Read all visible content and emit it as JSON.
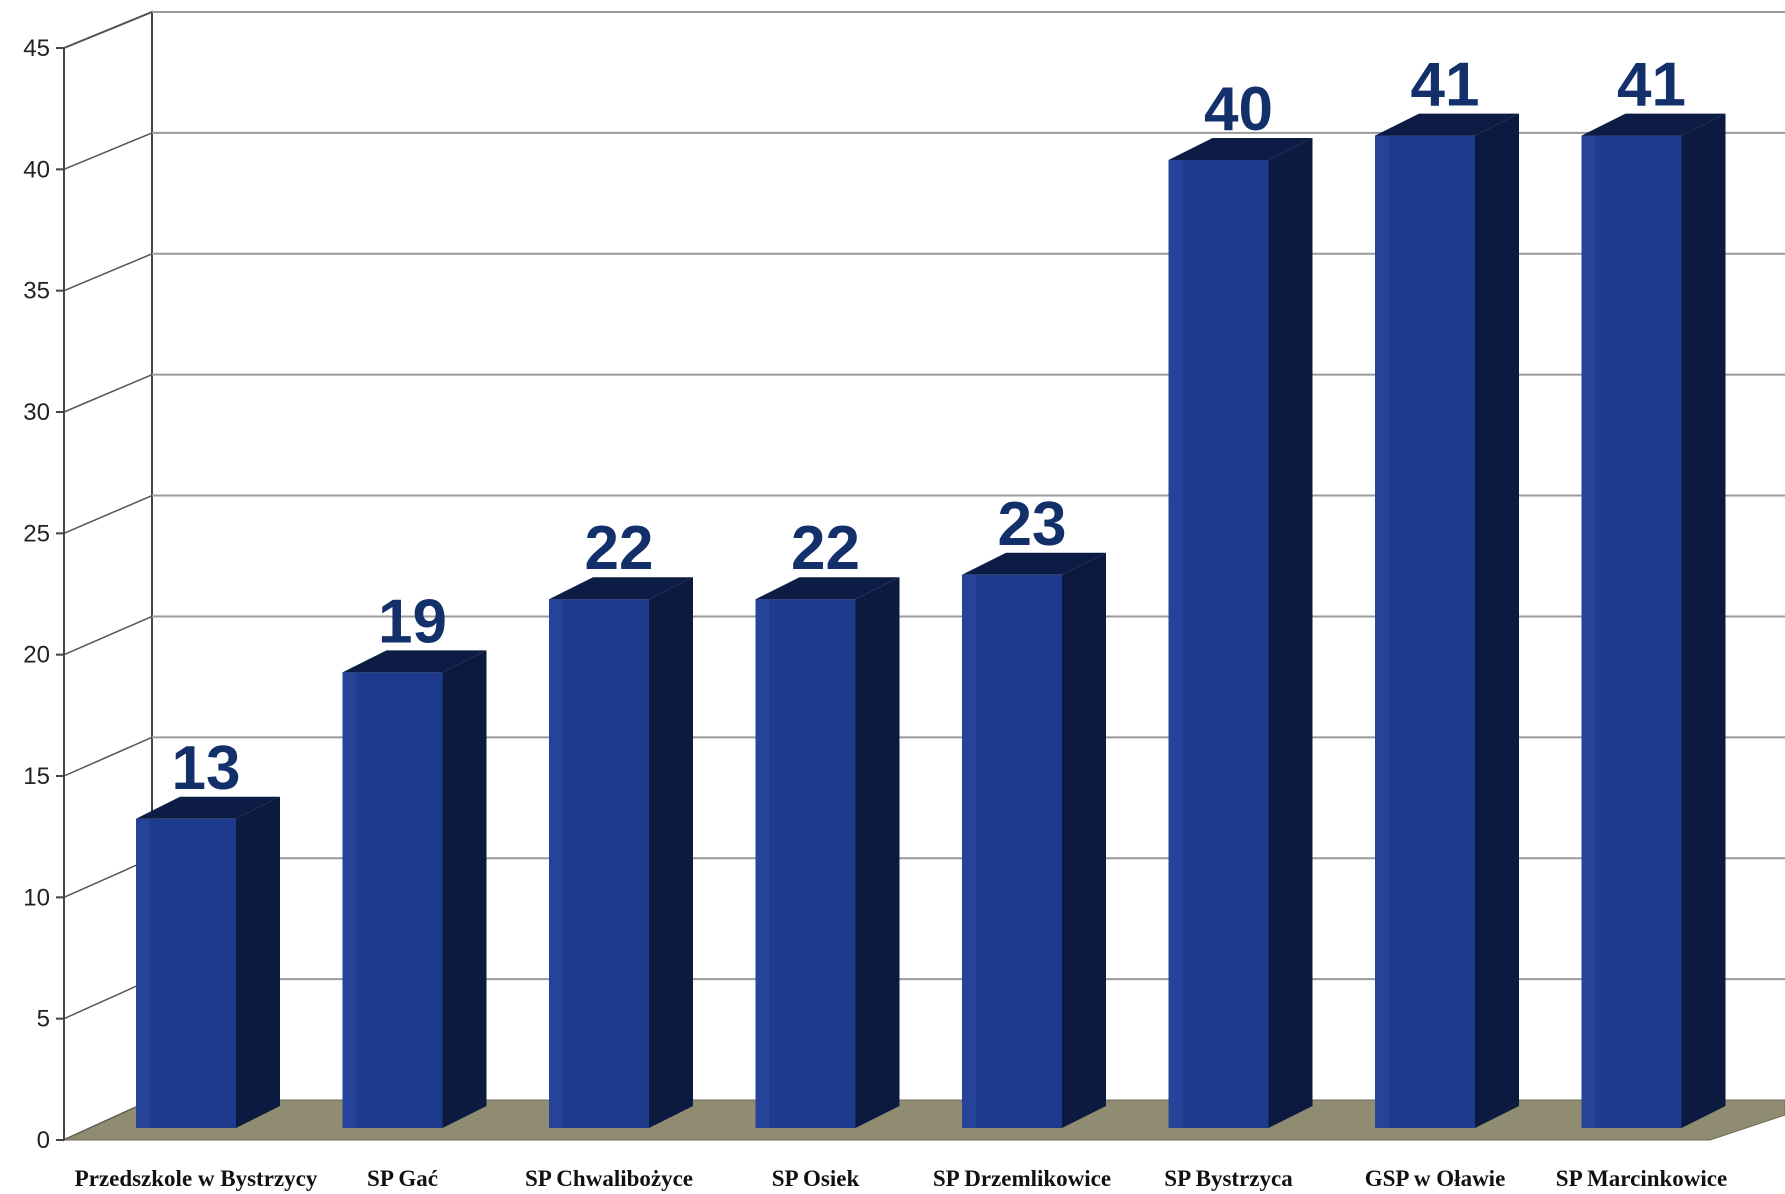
{
  "chart_data": {
    "type": "bar",
    "categories": [
      "Przedszkole w Bystrzycy",
      "SP Gać",
      "SP Chwalibożyce",
      "SP Osiek",
      "SP Drzemlikowice",
      "SP Bystrzyca",
      "GSP w Oławie",
      "SP Marcinkowice"
    ],
    "values": [
      13,
      19,
      22,
      22,
      23,
      40,
      41,
      41
    ],
    "data_labels": [
      "13",
      "19",
      "22",
      "22",
      "23",
      "40",
      "41",
      "41"
    ],
    "ylim": [
      0,
      45
    ],
    "yticks": [
      "0",
      "5",
      "10",
      "15",
      "20",
      "25",
      "30",
      "35",
      "40",
      "45"
    ],
    "grid": true,
    "style": "3d-column",
    "colors": {
      "bar": "#1e3a8c",
      "bar_side": "#0b1a3e",
      "bar_top": "#0d1c44",
      "label": "#14306b",
      "floor": "#8f8c72",
      "grid": "#9a9a9a"
    }
  }
}
